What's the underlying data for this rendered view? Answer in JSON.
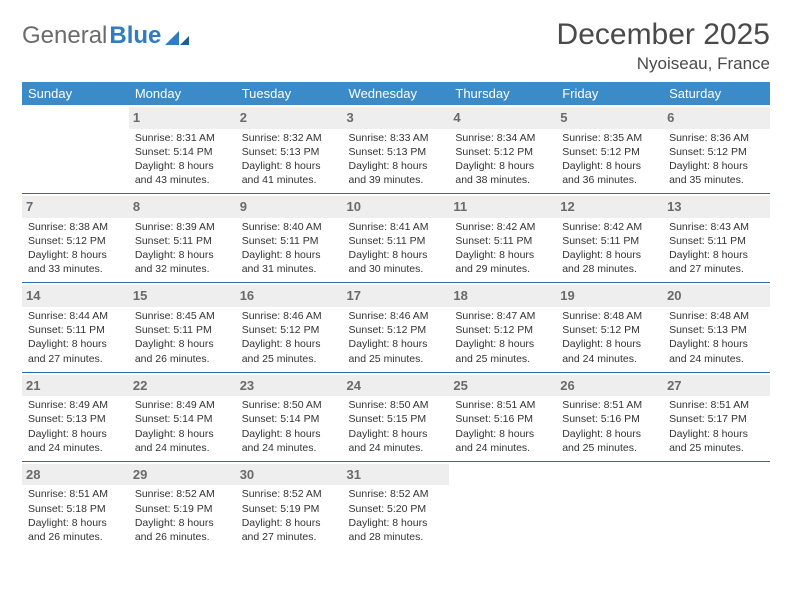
{
  "logo": {
    "text1": "General",
    "text2": "Blue",
    "accent_color": "#2f7dc0"
  },
  "title": {
    "month": "December 2025",
    "location": "Nyoiseau, France"
  },
  "header_bg": "#3b8bc9",
  "daynum_bg": "#eeeeee",
  "rule_color": "#2f6fa8",
  "weekdays": [
    "Sunday",
    "Monday",
    "Tuesday",
    "Wednesday",
    "Thursday",
    "Friday",
    "Saturday"
  ],
  "first_weekday_index": 1,
  "days": [
    {
      "n": 1,
      "sunrise": "8:31 AM",
      "sunset": "5:14 PM",
      "daylight": "8 hours and 43 minutes."
    },
    {
      "n": 2,
      "sunrise": "8:32 AM",
      "sunset": "5:13 PM",
      "daylight": "8 hours and 41 minutes."
    },
    {
      "n": 3,
      "sunrise": "8:33 AM",
      "sunset": "5:13 PM",
      "daylight": "8 hours and 39 minutes."
    },
    {
      "n": 4,
      "sunrise": "8:34 AM",
      "sunset": "5:12 PM",
      "daylight": "8 hours and 38 minutes."
    },
    {
      "n": 5,
      "sunrise": "8:35 AM",
      "sunset": "5:12 PM",
      "daylight": "8 hours and 36 minutes."
    },
    {
      "n": 6,
      "sunrise": "8:36 AM",
      "sunset": "5:12 PM",
      "daylight": "8 hours and 35 minutes."
    },
    {
      "n": 7,
      "sunrise": "8:38 AM",
      "sunset": "5:12 PM",
      "daylight": "8 hours and 33 minutes."
    },
    {
      "n": 8,
      "sunrise": "8:39 AM",
      "sunset": "5:11 PM",
      "daylight": "8 hours and 32 minutes."
    },
    {
      "n": 9,
      "sunrise": "8:40 AM",
      "sunset": "5:11 PM",
      "daylight": "8 hours and 31 minutes."
    },
    {
      "n": 10,
      "sunrise": "8:41 AM",
      "sunset": "5:11 PM",
      "daylight": "8 hours and 30 minutes."
    },
    {
      "n": 11,
      "sunrise": "8:42 AM",
      "sunset": "5:11 PM",
      "daylight": "8 hours and 29 minutes."
    },
    {
      "n": 12,
      "sunrise": "8:42 AM",
      "sunset": "5:11 PM",
      "daylight": "8 hours and 28 minutes."
    },
    {
      "n": 13,
      "sunrise": "8:43 AM",
      "sunset": "5:11 PM",
      "daylight": "8 hours and 27 minutes."
    },
    {
      "n": 14,
      "sunrise": "8:44 AM",
      "sunset": "5:11 PM",
      "daylight": "8 hours and 27 minutes."
    },
    {
      "n": 15,
      "sunrise": "8:45 AM",
      "sunset": "5:11 PM",
      "daylight": "8 hours and 26 minutes."
    },
    {
      "n": 16,
      "sunrise": "8:46 AM",
      "sunset": "5:12 PM",
      "daylight": "8 hours and 25 minutes."
    },
    {
      "n": 17,
      "sunrise": "8:46 AM",
      "sunset": "5:12 PM",
      "daylight": "8 hours and 25 minutes."
    },
    {
      "n": 18,
      "sunrise": "8:47 AM",
      "sunset": "5:12 PM",
      "daylight": "8 hours and 25 minutes."
    },
    {
      "n": 19,
      "sunrise": "8:48 AM",
      "sunset": "5:12 PM",
      "daylight": "8 hours and 24 minutes."
    },
    {
      "n": 20,
      "sunrise": "8:48 AM",
      "sunset": "5:13 PM",
      "daylight": "8 hours and 24 minutes."
    },
    {
      "n": 21,
      "sunrise": "8:49 AM",
      "sunset": "5:13 PM",
      "daylight": "8 hours and 24 minutes."
    },
    {
      "n": 22,
      "sunrise": "8:49 AM",
      "sunset": "5:14 PM",
      "daylight": "8 hours and 24 minutes."
    },
    {
      "n": 23,
      "sunrise": "8:50 AM",
      "sunset": "5:14 PM",
      "daylight": "8 hours and 24 minutes."
    },
    {
      "n": 24,
      "sunrise": "8:50 AM",
      "sunset": "5:15 PM",
      "daylight": "8 hours and 24 minutes."
    },
    {
      "n": 25,
      "sunrise": "8:51 AM",
      "sunset": "5:16 PM",
      "daylight": "8 hours and 24 minutes."
    },
    {
      "n": 26,
      "sunrise": "8:51 AM",
      "sunset": "5:16 PM",
      "daylight": "8 hours and 25 minutes."
    },
    {
      "n": 27,
      "sunrise": "8:51 AM",
      "sunset": "5:17 PM",
      "daylight": "8 hours and 25 minutes."
    },
    {
      "n": 28,
      "sunrise": "8:51 AM",
      "sunset": "5:18 PM",
      "daylight": "8 hours and 26 minutes."
    },
    {
      "n": 29,
      "sunrise": "8:52 AM",
      "sunset": "5:19 PM",
      "daylight": "8 hours and 26 minutes."
    },
    {
      "n": 30,
      "sunrise": "8:52 AM",
      "sunset": "5:19 PM",
      "daylight": "8 hours and 27 minutes."
    },
    {
      "n": 31,
      "sunrise": "8:52 AM",
      "sunset": "5:20 PM",
      "daylight": "8 hours and 28 minutes."
    }
  ],
  "labels": {
    "sunrise": "Sunrise:",
    "sunset": "Sunset:",
    "daylight": "Daylight:"
  }
}
